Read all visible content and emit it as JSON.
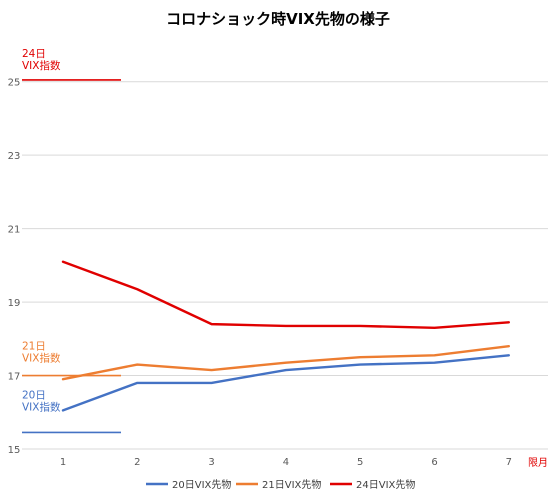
{
  "chart_data": {
    "type": "line",
    "title": "コロナショック時VIX先物の様子",
    "xlabel": "限月",
    "ylabel": "",
    "categories": [
      "1",
      "2",
      "3",
      "4",
      "5",
      "6",
      "7"
    ],
    "yticks": [
      "15",
      "17",
      "19",
      "21",
      "23",
      "25"
    ],
    "ylim": [
      15,
      26
    ],
    "grid": "horizontal",
    "legend_position": "bottom",
    "series": [
      {
        "name": "20日VIX先物",
        "color": "#4472C4",
        "values": [
          16.05,
          16.8,
          16.8,
          17.15,
          17.3,
          17.35,
          17.55
        ]
      },
      {
        "name": "21日VIX先物",
        "color": "#ED7D31",
        "values": [
          16.9,
          17.3,
          17.15,
          17.35,
          17.5,
          17.55,
          17.8
        ]
      },
      {
        "name": "24日VIX先物",
        "color": "#E00000",
        "values": [
          20.1,
          19.35,
          18.4,
          18.35,
          18.35,
          18.3,
          18.45
        ]
      }
    ],
    "reference_lines": [
      {
        "label_line1": "24日",
        "label_line2": "VIX指数",
        "value": 25.05,
        "color": "#E00000"
      },
      {
        "label_line1": "21日",
        "label_line2": "VIX指数",
        "value": 17.0,
        "color": "#ED7D31"
      },
      {
        "label_line1": "20日",
        "label_line2": "VIX指数",
        "value": 15.45,
        "color": "#4472C4"
      }
    ]
  }
}
